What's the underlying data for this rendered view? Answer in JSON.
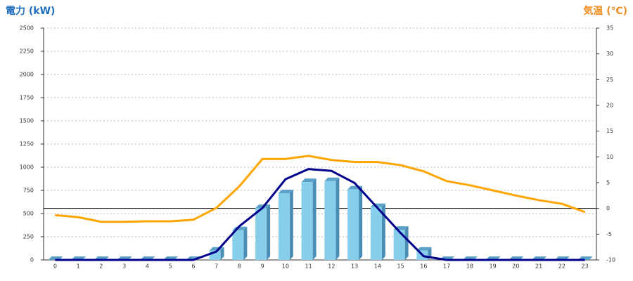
{
  "chart_data": {
    "type": "combo",
    "y_label": "電力 (kW)",
    "y2_label": "気温 (℃)",
    "categories": [
      "0",
      "1",
      "2",
      "3",
      "4",
      "5",
      "6",
      "7",
      "8",
      "9",
      "10",
      "11",
      "12",
      "13",
      "14",
      "15",
      "16",
      "17",
      "18",
      "19",
      "20",
      "21",
      "22",
      "23"
    ],
    "ylim": [
      0,
      2500
    ],
    "yticks": [
      0,
      250,
      500,
      750,
      1000,
      1250,
      1500,
      1750,
      2000,
      2250,
      2500
    ],
    "y2lim": [
      -10,
      35
    ],
    "y2ticks": [
      -10,
      -5,
      0,
      5,
      10,
      15,
      20,
      25,
      30,
      35
    ],
    "grid": true,
    "y2_reference_line": 0,
    "series": [
      {
        "type": "bar",
        "color": "#87ceeb",
        "values": [
          0,
          0,
          0,
          0,
          0,
          0,
          0,
          100,
          320,
          560,
          720,
          840,
          850,
          760,
          570,
          325,
          100,
          0,
          0,
          0,
          0,
          0,
          0,
          0
        ]
      },
      {
        "type": "line",
        "color": "#00008b",
        "values": [
          0,
          0,
          0,
          0,
          0,
          0,
          0,
          90,
          364,
          560,
          870,
          980,
          960,
          830,
          560,
          290,
          40,
          0,
          0,
          0,
          0,
          0,
          0,
          0
        ]
      },
      {
        "type": "line",
        "color": "#ffa500",
        "axis": "y2",
        "values": [
          -1.3,
          -1.7,
          -2.6,
          -2.6,
          -2.5,
          -2.5,
          -2.2,
          0.1,
          4.3,
          9.6,
          9.6,
          10.2,
          9.4,
          9.0,
          9.0,
          8.4,
          7.2,
          5.3,
          4.5,
          3.5,
          2.5,
          1.6,
          0.9,
          -0.7
        ]
      }
    ]
  }
}
